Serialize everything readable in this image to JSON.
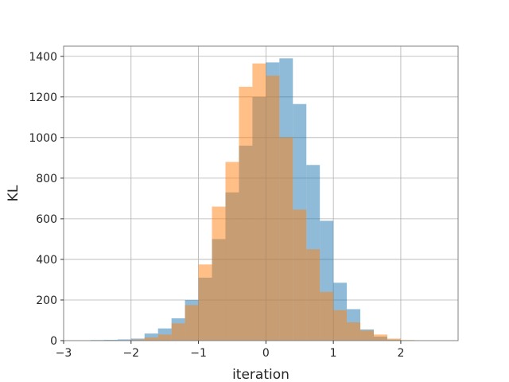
{
  "chart_data": {
    "type": "bar",
    "title": "",
    "xlabel": "iteration",
    "ylabel": "KL",
    "xlim": [
      -3.0,
      2.85
    ],
    "ylim": [
      0,
      1450
    ],
    "grid": true,
    "xticks": [
      -3,
      -2,
      -1,
      0,
      1,
      2
    ],
    "yticks": [
      0,
      200,
      400,
      600,
      800,
      1000,
      1200,
      1400
    ],
    "series": [
      {
        "color": "#1f77b4",
        "opacity": 0.5,
        "bin_edges": [
          -2.6,
          -2.4,
          -2.2,
          -2.0,
          -1.8,
          -1.6,
          -1.4,
          -1.2,
          -1.0,
          -0.8,
          -0.6,
          -0.4,
          -0.2,
          0.0,
          0.2,
          0.4,
          0.6,
          0.8,
          1.0,
          1.2,
          1.4,
          1.6,
          1.8,
          2.0,
          2.2,
          2.4,
          2.6
        ],
        "counts": [
          3,
          4,
          6,
          10,
          35,
          60,
          110,
          200,
          310,
          500,
          730,
          960,
          1200,
          1370,
          1390,
          1165,
          865,
          590,
          285,
          155,
          55,
          20,
          5,
          2,
          1,
          1
        ]
      },
      {
        "color": "#ff7f0e",
        "opacity": 0.5,
        "bin_edges": [
          -2.2,
          -2.0,
          -1.8,
          -1.6,
          -1.4,
          -1.2,
          -1.0,
          -0.8,
          -0.6,
          -0.4,
          -0.2,
          0.0,
          0.2,
          0.4,
          0.6,
          0.8,
          1.0,
          1.2,
          1.4,
          1.6,
          1.8,
          2.0,
          2.2
        ],
        "counts": [
          2,
          5,
          15,
          30,
          85,
          175,
          375,
          660,
          880,
          1250,
          1365,
          1305,
          1000,
          645,
          450,
          240,
          150,
          90,
          50,
          30,
          10,
          3
        ]
      }
    ]
  }
}
